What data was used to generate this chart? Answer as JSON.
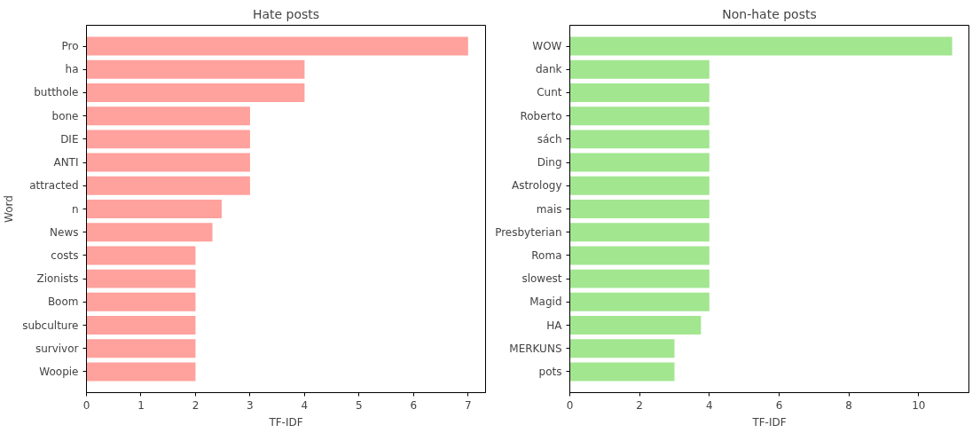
{
  "chart_data": [
    {
      "type": "bar",
      "orientation": "horizontal",
      "title": "Hate posts",
      "xlabel": "TF-IDF",
      "ylabel": "Word",
      "categories": [
        "Pro",
        "ha",
        "butthole",
        "bone",
        "DIE",
        "ANTI",
        "attracted",
        "n",
        "News",
        "costs",
        "Zionists",
        "Boom",
        "subculture",
        "survivor",
        "Woopie"
      ],
      "values": [
        7,
        4,
        4,
        3,
        3,
        3,
        3,
        2.48,
        2.31,
        2,
        2,
        2,
        2,
        2,
        2
      ],
      "color": "#ffa19c",
      "xlim": [
        0,
        7.32
      ],
      "xticks": [
        0,
        1,
        2,
        3,
        4,
        5,
        6,
        7
      ],
      "grid": false
    },
    {
      "type": "bar",
      "orientation": "horizontal",
      "title": "Non-hate posts",
      "xlabel": "TF-IDF",
      "categories": [
        "WOW",
        "dank",
        "Cunt",
        "Roberto",
        "sách",
        "Ding",
        "Astrology",
        "mais",
        "Presbyterian",
        "Roma",
        "slowest",
        "Magid",
        "HA",
        "MERKUNS",
        "pots"
      ],
      "values": [
        10.96,
        4,
        4,
        4,
        4,
        4,
        4,
        4,
        4,
        4,
        4,
        4,
        3.76,
        3,
        3
      ],
      "color": "#a2e690",
      "xlim": [
        0,
        11.44
      ],
      "xticks": [
        0,
        2,
        4,
        6,
        8,
        10
      ],
      "grid": false
    }
  ]
}
